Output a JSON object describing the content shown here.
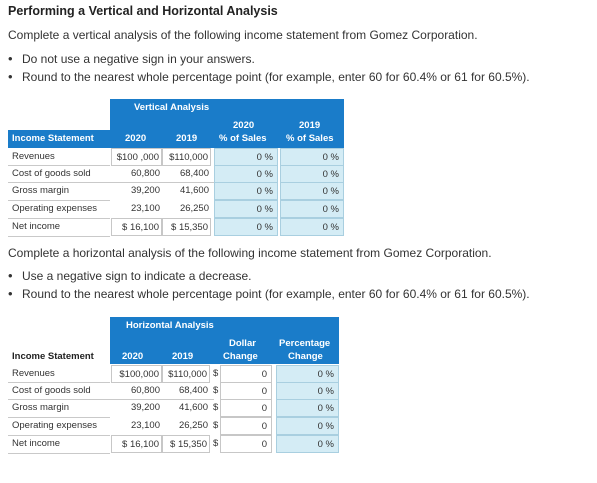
{
  "title": "Performing a Vertical and Horizontal Analysis",
  "vertical": {
    "instruction": "Complete a vertical analysis of the following income statement from Gomez Corporation.",
    "bullets": [
      "Do not use a negative sign in your answers.",
      "Round to the nearest whole percentage point (for example, enter 60 for 60.4% or 61 for 60.5%)."
    ],
    "table": {
      "header": "Vertical Analysis",
      "col_income": "Income Statement",
      "col_2020": "2020",
      "col_2019": "2019",
      "col_pct2020_top": "2020",
      "col_pct2020_bot": "% of Sales",
      "col_pct2019_top": "2019",
      "col_pct2019_bot": "% of Sales",
      "rows": [
        {
          "label": "Revenues",
          "v2020": "$100 ,000",
          "v2019": "$110,000",
          "p2020": "0",
          "p2019": "0"
        },
        {
          "label": "Cost of goods sold",
          "v2020": "60,800",
          "v2019": "68,400",
          "p2020": "0",
          "p2019": "0"
        },
        {
          "label": "Gross margin",
          "v2020": "39,200",
          "v2019": "41,600",
          "p2020": "0",
          "p2019": "0"
        },
        {
          "label": "Operating expenses",
          "v2020": "23,100",
          "v2019": "26,250",
          "p2020": "0",
          "p2019": "0"
        },
        {
          "label": "Net income",
          "v2020": "$ 16,100",
          "v2019": "$ 15,350",
          "p2020": "0",
          "p2019": "0"
        }
      ],
      "pct_suffix": "%"
    }
  },
  "horizontal": {
    "instruction": "Complete a horizontal analysis of the following income statement from Gomez Corporation.",
    "bullets": [
      "Use a negative sign to indicate a decrease.",
      "Round to the nearest whole percentage point (for example, enter 60 for 60.4% or 61 for 60.5%)."
    ],
    "table": {
      "header": "Horizontal Analysis",
      "col_income": "Income Statement",
      "col_2020": "2020",
      "col_2019": "2019",
      "col_dollar_top": "Dollar",
      "col_dollar_bot": "Change",
      "col_pct_top": "Percentage",
      "col_pct_bot": "Change",
      "dollar_sign": "$",
      "rows": [
        {
          "label": "Revenues",
          "v2020": "$100,000",
          "v2019": "$110,000",
          "dollar": "0",
          "pct": "0"
        },
        {
          "label": "Cost of goods sold",
          "v2020": "60,800",
          "v2019": "68,400",
          "dollar": "0",
          "pct": "0"
        },
        {
          "label": "Gross margin",
          "v2020": "39,200",
          "v2019": "41,600",
          "dollar": "0",
          "pct": "0"
        },
        {
          "label": "Operating expenses",
          "v2020": "23,100",
          "v2019": "26,250",
          "dollar": "0",
          "pct": "0"
        },
        {
          "label": "Net income",
          "v2020": "$ 16,100",
          "v2019": "$ 15,350",
          "dollar": "0",
          "pct": "0"
        }
      ],
      "pct_suffix": "%"
    }
  }
}
